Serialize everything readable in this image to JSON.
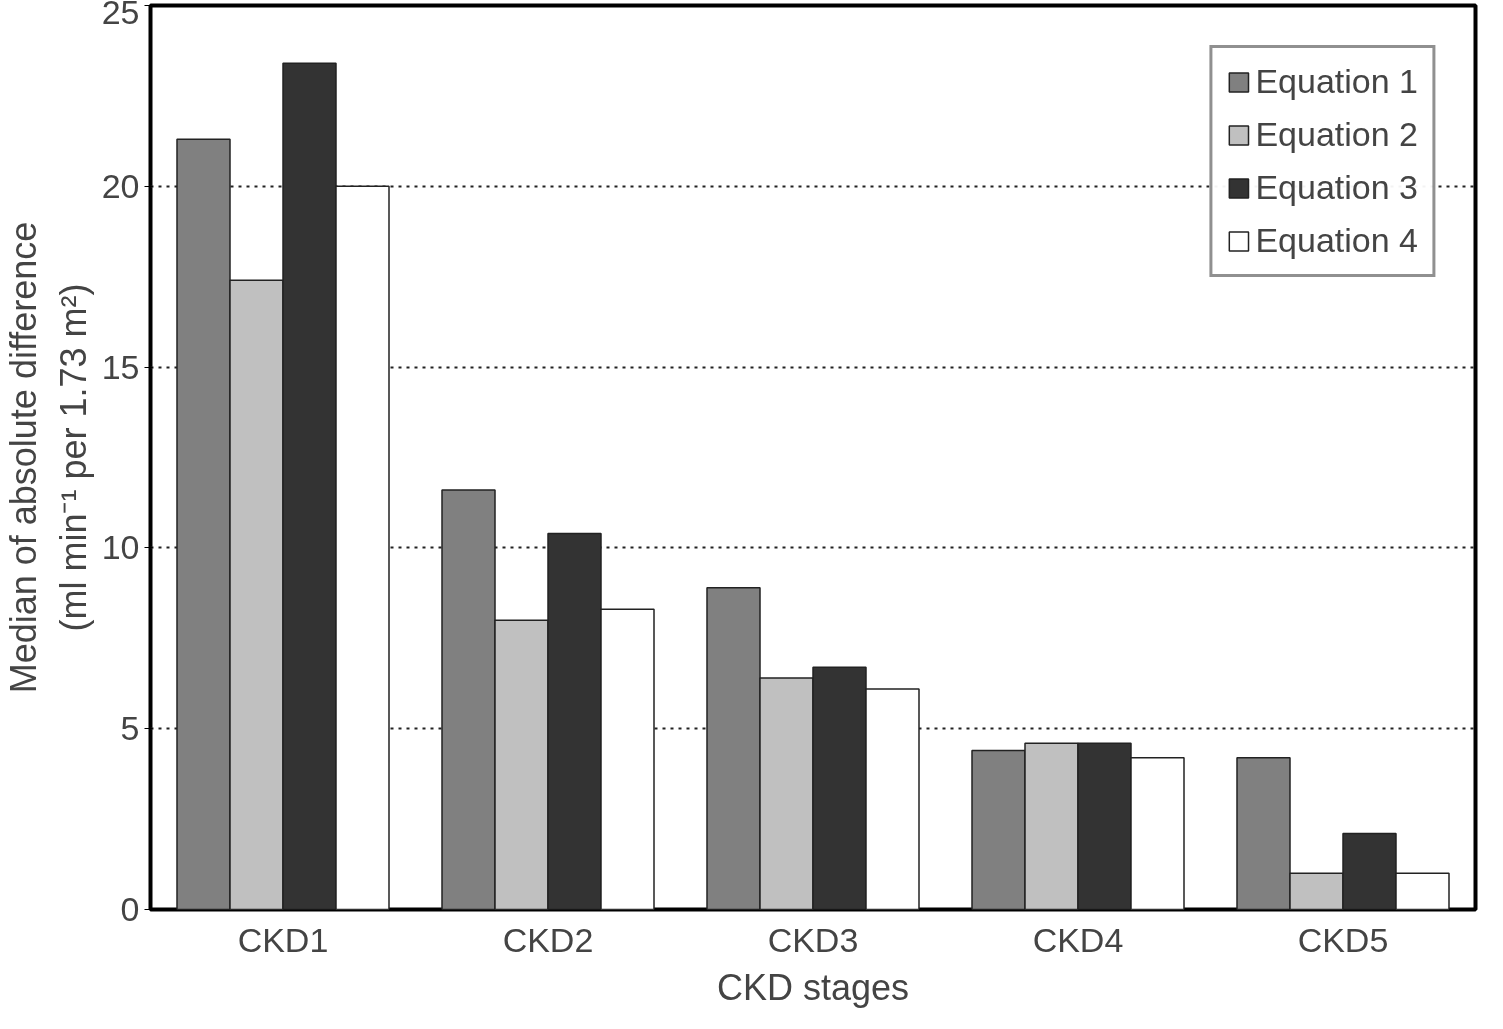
{
  "chart_data": {
    "type": "bar",
    "xlabel": "CKD stages",
    "ylabel": "Median of absolute difference\n(ml min⁻¹ per 1.73 m²)",
    "categories": [
      "CKD1",
      "CKD2",
      "CKD3",
      "CKD4",
      "CKD5"
    ],
    "series": [
      {
        "name": "Equation 1",
        "color": "#808080",
        "values": [
          21.3,
          11.6,
          8.9,
          4.4,
          4.2
        ]
      },
      {
        "name": "Equation 2",
        "color": "#c0c0c0",
        "values": [
          17.4,
          8.0,
          6.4,
          4.6,
          1.0
        ]
      },
      {
        "name": "Equation 3",
        "color": "#333333",
        "values": [
          23.4,
          10.4,
          6.7,
          4.6,
          2.1
        ]
      },
      {
        "name": "Equation 4",
        "color": "#ffffff",
        "values": [
          20.0,
          8.3,
          6.1,
          4.2,
          1.0
        ]
      }
    ],
    "ylim": [
      0,
      25
    ],
    "yticks": [
      0,
      5,
      10,
      15,
      20,
      25
    ],
    "grid": "y",
    "legend": "top right"
  }
}
